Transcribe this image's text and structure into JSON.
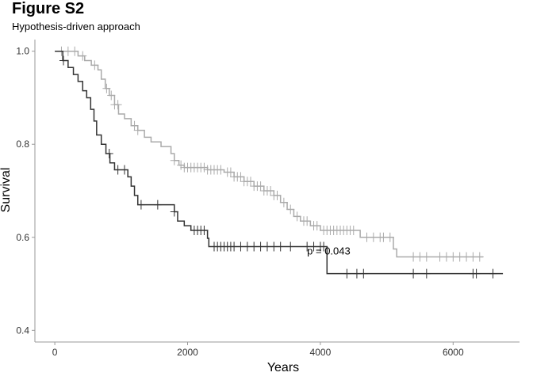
{
  "figure": {
    "title": "Figure S2",
    "subtitle": "Hypothesis-driven approach"
  },
  "chart_data": {
    "type": "line",
    "subtype": "kaplan-meier",
    "title": "Figure S2",
    "subtitle": "Hypothesis-driven approach",
    "xlabel": "Years",
    "ylabel": "Survival",
    "xlim": [
      -300,
      7000
    ],
    "ylim": [
      0.375,
      1.025
    ],
    "x_ticks": [
      0,
      2000,
      4000,
      6000
    ],
    "y_ticks": [
      0.4,
      0.6,
      0.8,
      1.0
    ],
    "y_tick_labels": [
      "0.4",
      "0.6",
      "0.8",
      "1.0"
    ],
    "grid": false,
    "legend": "none",
    "annotations": [
      {
        "text": "p = 0.043",
        "x": 3800,
        "y": 0.57
      }
    ],
    "series": [
      {
        "color": "#aaaaaa",
        "steps": [
          [
            0,
            1.0
          ],
          [
            350,
            0.99
          ],
          [
            450,
            0.98
          ],
          [
            550,
            0.97
          ],
          [
            650,
            0.96
          ],
          [
            700,
            0.94
          ],
          [
            760,
            0.92
          ],
          [
            820,
            0.905
          ],
          [
            900,
            0.885
          ],
          [
            960,
            0.865
          ],
          [
            1050,
            0.855
          ],
          [
            1150,
            0.84
          ],
          [
            1250,
            0.83
          ],
          [
            1350,
            0.815
          ],
          [
            1450,
            0.805
          ],
          [
            1600,
            0.795
          ],
          [
            1750,
            0.78
          ],
          [
            1800,
            0.765
          ],
          [
            1870,
            0.755
          ],
          [
            1950,
            0.75
          ],
          [
            2300,
            0.745
          ],
          [
            2550,
            0.74
          ],
          [
            2700,
            0.73
          ],
          [
            2850,
            0.72
          ],
          [
            3000,
            0.71
          ],
          [
            3150,
            0.7
          ],
          [
            3300,
            0.69
          ],
          [
            3400,
            0.675
          ],
          [
            3500,
            0.66
          ],
          [
            3600,
            0.645
          ],
          [
            3700,
            0.635
          ],
          [
            3850,
            0.625
          ],
          [
            4000,
            0.615
          ],
          [
            4600,
            0.6
          ],
          [
            5100,
            0.575
          ],
          [
            5150,
            0.558
          ],
          [
            6450,
            0.558
          ]
        ],
        "censor_x": [
          100,
          200,
          300,
          420,
          600,
          780,
          850,
          900,
          950,
          1200,
          1250,
          1800,
          1900,
          1950,
          2000,
          2050,
          2100,
          2150,
          2200,
          2250,
          2300,
          2350,
          2400,
          2450,
          2500,
          2600,
          2650,
          2700,
          2750,
          2800,
          2850,
          2900,
          2950,
          3000,
          3050,
          3100,
          3150,
          3200,
          3250,
          3300,
          3350,
          3450,
          3550,
          3650,
          3750,
          3800,
          3900,
          3950,
          4050,
          4100,
          4150,
          4200,
          4250,
          4300,
          4350,
          4400,
          4450,
          4500,
          4700,
          4800,
          4900,
          4950,
          5050,
          5400,
          5500,
          5600,
          5800,
          5900,
          6000,
          6100,
          6200,
          6300,
          6400
        ]
      },
      {
        "color": "#333333",
        "steps": [
          [
            0,
            1.0
          ],
          [
            120,
            0.98
          ],
          [
            200,
            0.965
          ],
          [
            280,
            0.95
          ],
          [
            350,
            0.935
          ],
          [
            420,
            0.915
          ],
          [
            480,
            0.9
          ],
          [
            540,
            0.875
          ],
          [
            590,
            0.85
          ],
          [
            630,
            0.82
          ],
          [
            700,
            0.8
          ],
          [
            770,
            0.78
          ],
          [
            830,
            0.76
          ],
          [
            900,
            0.745
          ],
          [
            1100,
            0.73
          ],
          [
            1150,
            0.71
          ],
          [
            1200,
            0.69
          ],
          [
            1250,
            0.67
          ],
          [
            1800,
            0.655
          ],
          [
            1850,
            0.635
          ],
          [
            1950,
            0.625
          ],
          [
            2050,
            0.615
          ],
          [
            2300,
            0.598
          ],
          [
            2320,
            0.58
          ],
          [
            4090,
            0.58
          ],
          [
            4100,
            0.522
          ],
          [
            6750,
            0.522
          ]
        ],
        "censor_x": [
          130,
          820,
          950,
          1050,
          1300,
          1550,
          1800,
          2100,
          2150,
          2200,
          2250,
          2400,
          2450,
          2500,
          2550,
          2600,
          2650,
          2700,
          2800,
          2900,
          3000,
          3100,
          3200,
          3300,
          3400,
          3550,
          3800,
          3900,
          4000,
          4050,
          4400,
          4550,
          4650,
          5400,
          5600,
          6300,
          6350,
          6600
        ]
      }
    ]
  }
}
